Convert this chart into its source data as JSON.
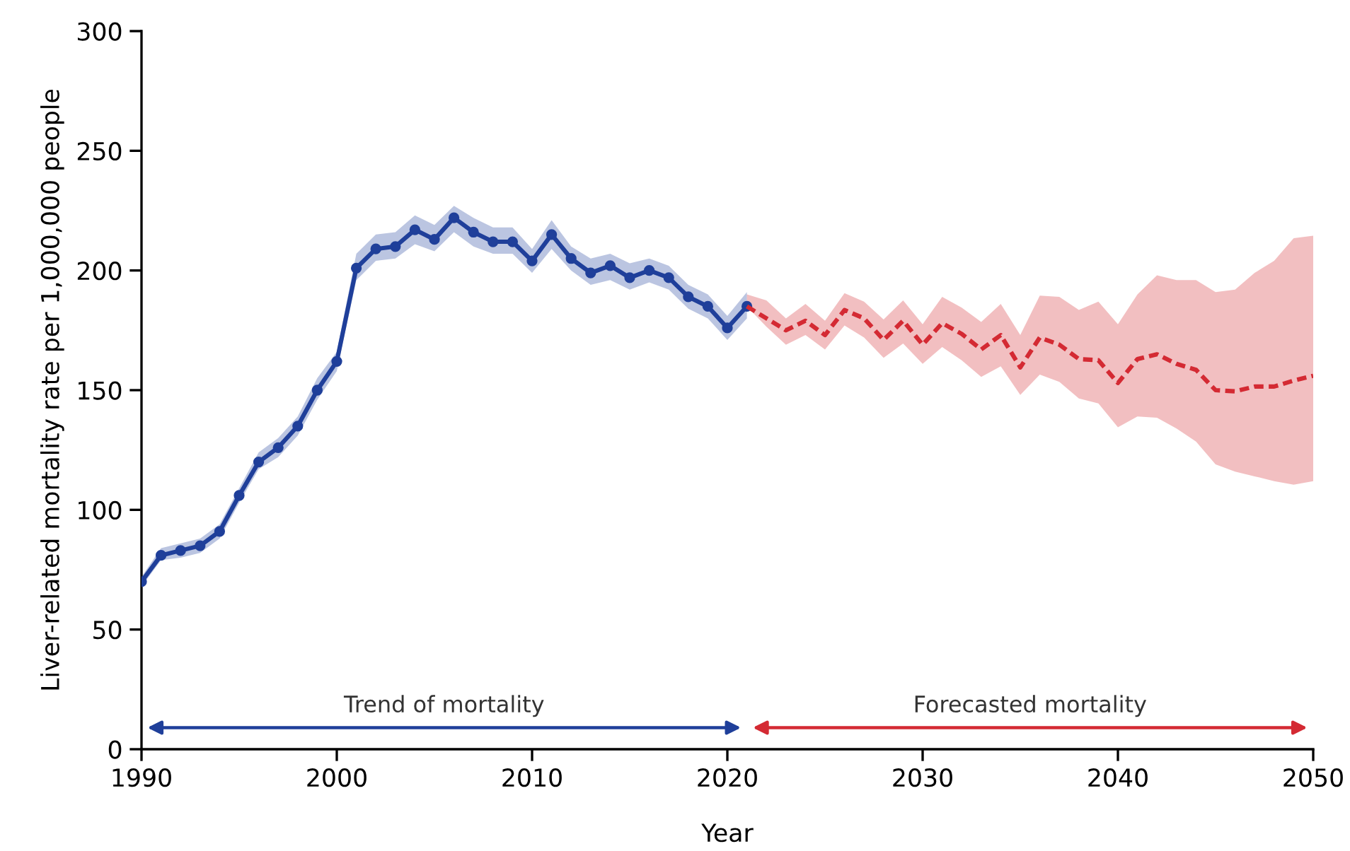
{
  "chart_data": {
    "type": "line",
    "xlabel": "Year",
    "ylabel": "Liver-related mortality rate per 1,000,000 people",
    "xlim": [
      1990,
      2050
    ],
    "ylim": [
      0,
      300
    ],
    "xticks": [
      1990,
      2000,
      2010,
      2020,
      2030,
      2040,
      2050
    ],
    "yticks": [
      0,
      50,
      100,
      150,
      200,
      250,
      300
    ],
    "grid": false,
    "legend": false,
    "series": [
      {
        "color": "#1f3f9a",
        "marker": "circle",
        "line_style": "solid",
        "x": [
          1990,
          1991,
          1992,
          1993,
          1994,
          1995,
          1996,
          1997,
          1998,
          1999,
          2000,
          2001,
          2002,
          2003,
          2004,
          2005,
          2006,
          2007,
          2008,
          2009,
          2010,
          2011,
          2012,
          2013,
          2014,
          2015,
          2016,
          2017,
          2018,
          2019,
          2020,
          2021
        ],
        "values": [
          70,
          81,
          83,
          85,
          91,
          106,
          120,
          126,
          135,
          150,
          162,
          201,
          209,
          210,
          217,
          213,
          222,
          216,
          212,
          212,
          204,
          215,
          205,
          199,
          202,
          197,
          200,
          197,
          189,
          185,
          176,
          185
        ],
        "lower": [
          68,
          79,
          80,
          82,
          88,
          103,
          117,
          122,
          131,
          146,
          158,
          196,
          204,
          205,
          211,
          208,
          216,
          210,
          207,
          207,
          199,
          209,
          200,
          194,
          196,
          192,
          195,
          192,
          184,
          180,
          171,
          180
        ],
        "upper": [
          72,
          84,
          86,
          88,
          94,
          109,
          124,
          130,
          139,
          155,
          166,
          207,
          215,
          216,
          223,
          219,
          227,
          222,
          218,
          218,
          209,
          221,
          210,
          205,
          207,
          203,
          205,
          202,
          194,
          190,
          181,
          191
        ]
      },
      {
        "color": "#d42a33",
        "marker": "none",
        "line_style": "dashed",
        "x": [
          2021,
          2022,
          2023,
          2024,
          2025,
          2026,
          2027,
          2028,
          2029,
          2030,
          2031,
          2032,
          2033,
          2034,
          2035,
          2036,
          2037,
          2038,
          2039,
          2040,
          2041,
          2042,
          2043,
          2044,
          2045,
          2046,
          2047,
          2048,
          2049,
          2050
        ],
        "values": [
          185,
          180,
          175,
          179,
          173,
          183.5,
          180,
          171,
          179,
          169,
          178,
          173.5,
          167,
          173,
          159.5,
          172,
          169,
          163,
          162.5,
          153,
          163,
          165,
          161,
          158.5,
          150,
          149.5,
          151.5,
          151.5,
          154,
          156
        ],
        "lower": [
          185,
          176.5,
          169,
          173,
          167,
          177,
          172,
          163.5,
          169.5,
          161,
          168,
          162.5,
          155.5,
          160,
          148,
          156.5,
          153.5,
          146.5,
          144.5,
          134.5,
          139,
          138.5,
          134,
          128.5,
          119,
          116,
          114,
          112,
          110.5,
          112
        ],
        "upper": [
          190,
          187.5,
          180,
          186,
          179,
          190.5,
          187,
          179.5,
          187.5,
          177.5,
          189,
          184.5,
          178.5,
          186,
          173,
          189.5,
          189,
          183.5,
          187,
          177.5,
          190,
          198,
          196,
          196,
          191,
          192,
          199,
          204,
          213.5,
          214.5
        ]
      }
    ],
    "annotations": [
      "Trend of mortality",
      "Forecasted mortality"
    ]
  }
}
